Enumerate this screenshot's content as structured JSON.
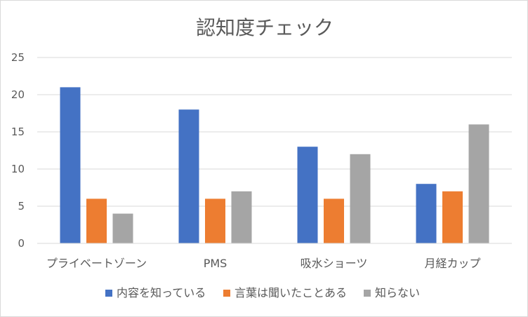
{
  "chart_data": {
    "type": "bar",
    "title": "認知度チェック",
    "categories": [
      "プライベートゾーン",
      "PMS",
      "吸水ショーツ",
      "月経カップ"
    ],
    "series": [
      {
        "name": "内容を知っている",
        "values": [
          21,
          18,
          13,
          8
        ],
        "color": "#4472C4"
      },
      {
        "name": "言葉は聞いたことある",
        "values": [
          6,
          6,
          6,
          7
        ],
        "color": "#ED7D31"
      },
      {
        "name": "知らない",
        "values": [
          4,
          7,
          12,
          16
        ],
        "color": "#A5A5A5"
      }
    ],
    "yticks": [
      0,
      5,
      10,
      15,
      20,
      25
    ],
    "ylim": [
      0,
      25
    ],
    "grid": true,
    "legend": "bottom",
    "colors": {
      "grid": "#d9d9d9",
      "text": "#595959",
      "border": "#d9d9d9"
    }
  }
}
